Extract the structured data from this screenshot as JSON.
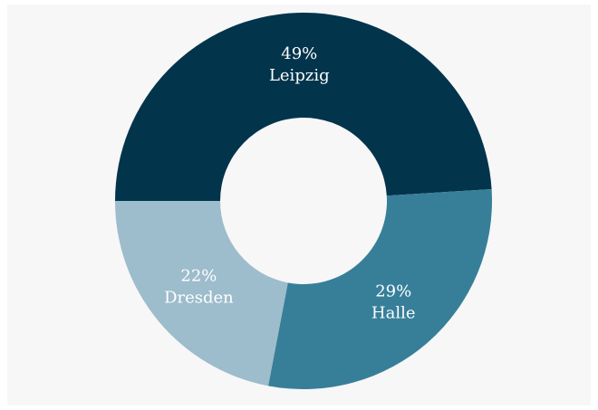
{
  "chart_data": {
    "type": "donut",
    "categories": [
      "Leipzig",
      "Halle",
      "Dresden"
    ],
    "values": [
      49,
      29,
      22
    ],
    "value_labels": [
      "49%",
      "29%",
      "22%"
    ],
    "colors": [
      "#02344c",
      "#377f99",
      "#9dbccc"
    ]
  }
}
